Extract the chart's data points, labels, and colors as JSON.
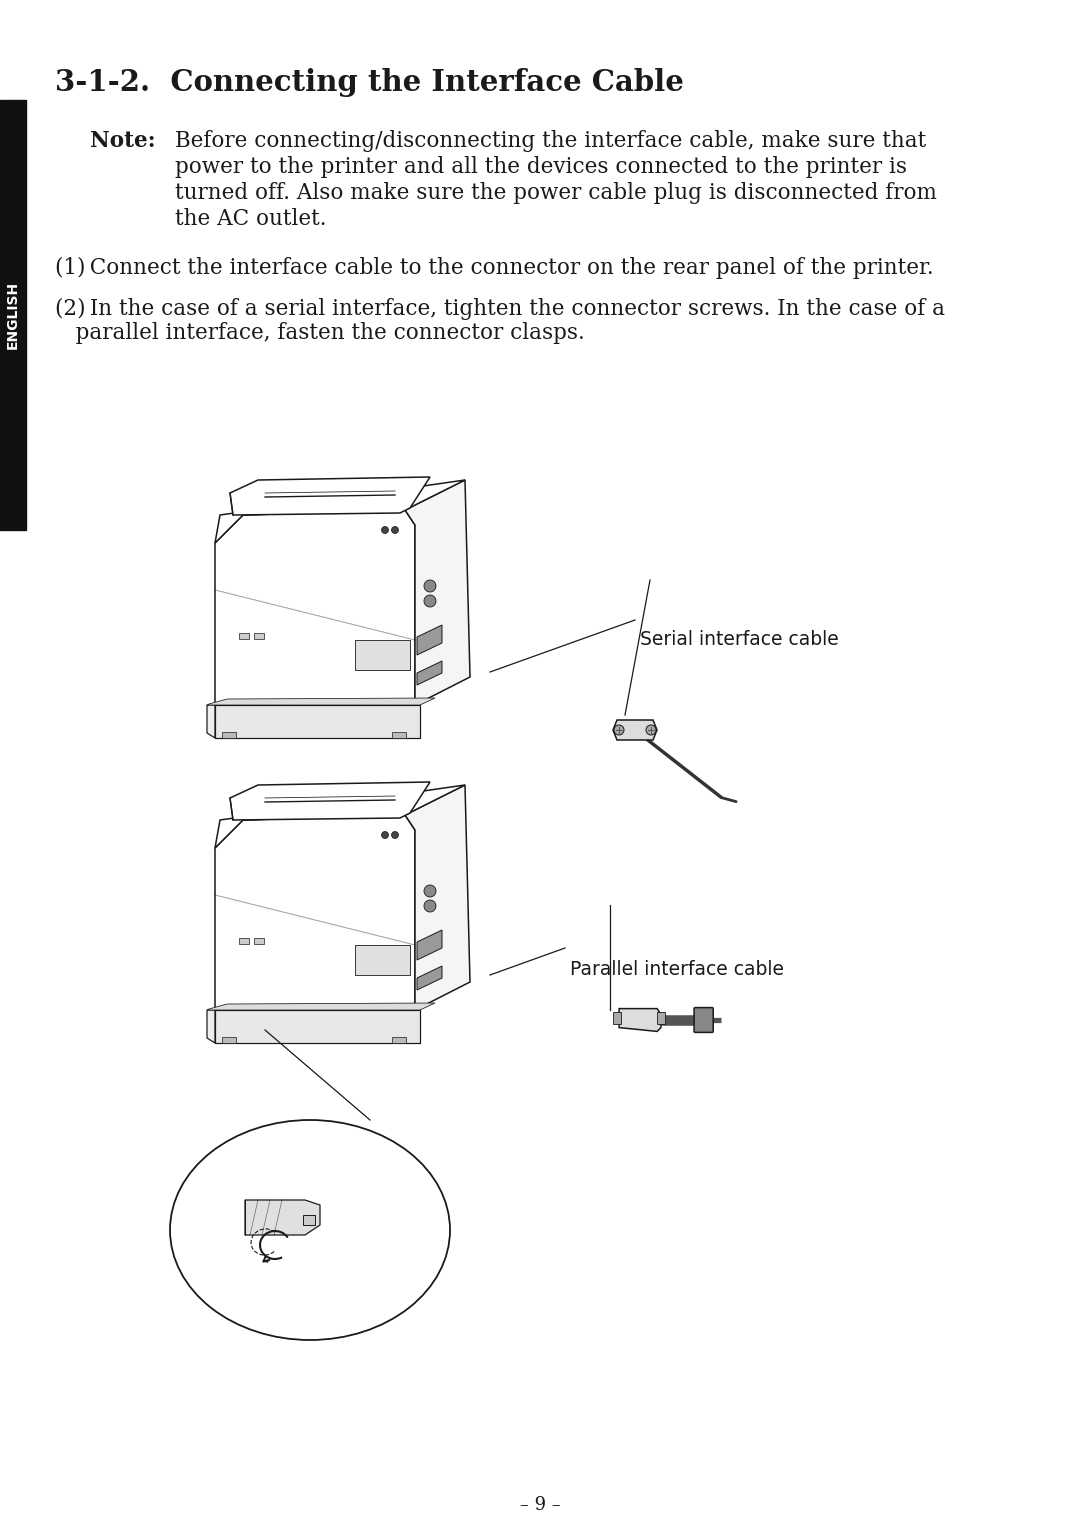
{
  "title": "3-1-2.  Connecting the Interface Cable",
  "bg_color": "#ffffff",
  "text_color": "#1a1a1a",
  "sidebar_color": "#111111",
  "sidebar_text": "ENGLISH",
  "note_bold": "Note:",
  "page_num": "– 9 –",
  "label_serial": "Serial interface cable",
  "label_parallel": "Parallel interface cable",
  "note_line1": "Before connecting/disconnecting the interface cable, make sure that",
  "note_line2": "power to the printer and all the devices connected to the printer is",
  "note_line3": "turned off. Also make sure the power cable plug is disconnected from",
  "note_line4": "the AC outlet.",
  "step1": "(1) Connect the interface cable to the connector on the rear panel of the printer.",
  "step2a": "(2) In the case of a serial interface, tighten the connector screws. In the case of a",
  "step2b": "   parallel interface, fasten the connector clasps.",
  "font_size_title": 21,
  "font_size_body": 15.5,
  "font_size_note": 15.5,
  "font_size_label": 13.5
}
